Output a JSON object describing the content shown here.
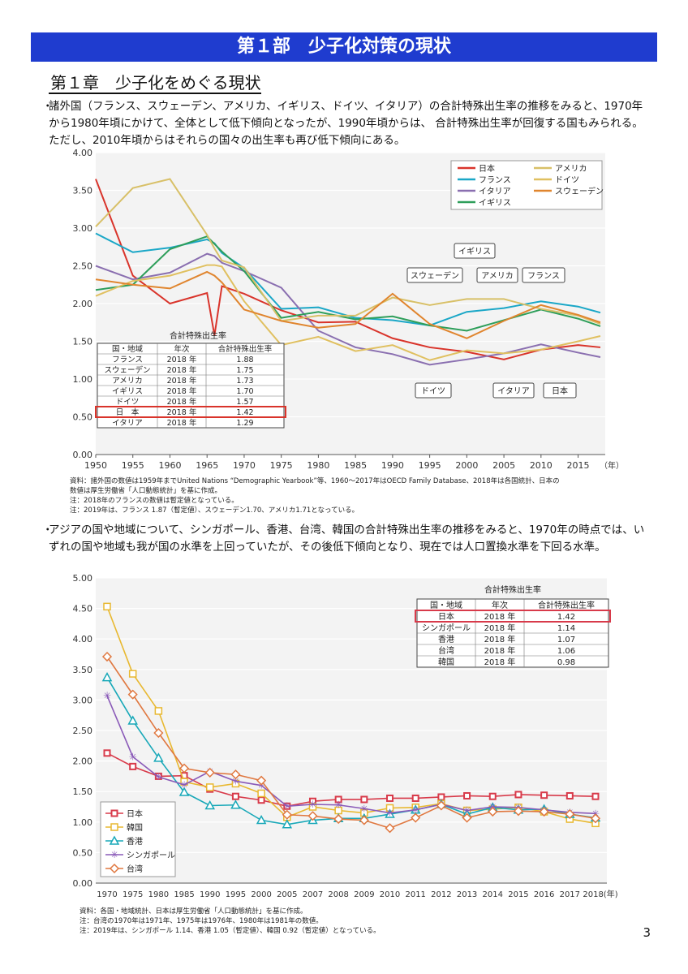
{
  "banner": "第１部　少子化対策の現状",
  "chapter": "第１章　少子化をめぐる現状",
  "bullet": "・",
  "para1": "諸外国（フランス、スウェーデン、アメリカ、イギリス、ドイツ、イタリア）の合計特殊出生率の推移をみると、1970年から1980年頃にかけて、全体として低下傾向となったが、1990年頃からは、 合計特殊出生率が回復する国もみられる。ただし、2010年頃からはそれらの国々の出生率も再び低下傾向にある。",
  "para2": "アジアの国や地域について、シンガポール、香港、台湾、韓国の合計特殊出生率の推移をみると、1970年の時点では、いずれの国や地域も我が国の水準を上回っていたが、その後低下傾向となり、現在では人口置換水準を下回る水準。",
  "notes1": [
    "資料：諸外国の数値は1959年までUnited Nations “Demographic Yearbook”等、1960～2017年はOECD Family Database、2018年は各国統計、日本の",
    "数値は厚生労働省「人口動態統計」を基に作成。",
    "注：2018年のフランスの数値は暫定値となっている。",
    "注：2019年は、フランス 1.87（暫定値）、スウェーデン1.70、アメリカ1.71となっている。"
  ],
  "notes2": [
    "資料：各国・地域統計、日本は厚生労働省「人口動態統計」を基に作成。",
    "注：台湾の1970年は1971年、1975年は1976年、1980年は1981年の数値。",
    "注：2019年は、シンガポール 1.14、香港 1.05（暫定値）、韓国 0.92（暫定値）となっている。"
  ],
  "page_number": "3",
  "chart_data": [
    {
      "type": "line",
      "ylim": [
        0,
        4
      ],
      "xlim": [
        1950,
        2018
      ],
      "x_unit_label": "（年）",
      "xticks": [
        "1950",
        "1955",
        "1960",
        "1965",
        "1970",
        "1975",
        "1980",
        "1985",
        "1990",
        "1995",
        "2000",
        "2005",
        "2010",
        "2015"
      ],
      "yticks": [
        "0.00",
        "0.50",
        "1.00",
        "1.50",
        "2.00",
        "2.50",
        "3.00",
        "3.50",
        "4.00"
      ],
      "grid": true,
      "legend": "top-right",
      "x": [
        1950,
        1955,
        1960,
        1965,
        1966,
        1967,
        1970,
        1975,
        1980,
        1985,
        1990,
        1995,
        2000,
        2005,
        2010,
        2015,
        2018
      ],
      "series": [
        {
          "name": "日本",
          "color": "#d9342b",
          "values": [
            3.65,
            2.37,
            2.0,
            2.14,
            1.58,
            2.23,
            2.13,
            1.91,
            1.75,
            1.76,
            1.54,
            1.42,
            1.36,
            1.26,
            1.39,
            1.45,
            1.42
          ]
        },
        {
          "name": "フランス",
          "color": "#1aa7c7",
          "values": [
            2.93,
            2.68,
            2.74,
            2.85,
            2.8,
            2.67,
            2.47,
            1.93,
            1.95,
            1.81,
            1.78,
            1.71,
            1.89,
            1.94,
            2.03,
            1.96,
            1.88
          ]
        },
        {
          "name": "イタリア",
          "color": "#8a6fb0",
          "values": [
            2.5,
            2.32,
            2.41,
            2.66,
            2.63,
            2.54,
            2.43,
            2.21,
            1.64,
            1.42,
            1.33,
            1.19,
            1.26,
            1.34,
            1.46,
            1.35,
            1.29
          ]
        },
        {
          "name": "イギリス",
          "color": "#2e9e5a",
          "values": [
            2.18,
            2.25,
            2.72,
            2.89,
            2.79,
            2.69,
            2.43,
            1.81,
            1.89,
            1.79,
            1.83,
            1.71,
            1.64,
            1.78,
            1.92,
            1.8,
            1.7
          ]
        },
        {
          "name": "アメリカ",
          "color": "#d8c068",
          "values": [
            3.02,
            3.53,
            3.65,
            2.91,
            2.73,
            2.57,
            2.48,
            1.77,
            1.84,
            1.84,
            2.08,
            1.98,
            2.06,
            2.06,
            1.93,
            1.84,
            1.73
          ]
        },
        {
          "name": "ドイツ",
          "color": "#e0c060",
          "values": [
            2.1,
            2.3,
            2.37,
            2.51,
            2.51,
            2.49,
            2.03,
            1.45,
            1.56,
            1.37,
            1.45,
            1.25,
            1.38,
            1.34,
            1.39,
            1.5,
            1.57
          ]
        },
        {
          "name": "スウェーデン",
          "color": "#e0852e",
          "values": [
            2.32,
            2.25,
            2.2,
            2.42,
            2.37,
            2.28,
            1.92,
            1.77,
            1.68,
            1.73,
            2.13,
            1.73,
            1.54,
            1.77,
            1.98,
            1.85,
            1.75
          ]
        }
      ],
      "table": {
        "title": "合計特殊出生率",
        "headers": [
          "国・地域",
          "年次",
          "合計特殊出生率"
        ],
        "rows": [
          [
            "フランス",
            "2018 年",
            "1.88"
          ],
          [
            "スウェーデン",
            "2018 年",
            "1.75"
          ],
          [
            "アメリカ",
            "2018 年",
            "1.73"
          ],
          [
            "イギリス",
            "2018 年",
            "1.70"
          ],
          [
            "ドイツ",
            "2018 年",
            "1.57"
          ],
          [
            "日　本",
            "2018 年",
            "1.42"
          ],
          [
            "イタリア",
            "2018 年",
            "1.29"
          ]
        ],
        "highlight_row": 5
      },
      "callouts": [
        "イギリス",
        "スウェーデン",
        "アメリカ",
        "フランス",
        "ドイツ",
        "イタリア",
        "日本"
      ]
    },
    {
      "type": "line",
      "ylim": [
        0,
        5
      ],
      "categories": [
        "1970",
        "1975",
        "1980",
        "1985",
        "1990",
        "1995",
        "2000",
        "2005",
        "2007",
        "2008",
        "2009",
        "2010",
        "2011",
        "2012",
        "2013",
        "2014",
        "2015",
        "2016",
        "2017",
        "2018(年)"
      ],
      "yticks": [
        "0.00",
        "0.50",
        "1.00",
        "1.50",
        "2.00",
        "2.50",
        "3.00",
        "3.50",
        "4.00",
        "4.50",
        "5.00"
      ],
      "grid": true,
      "legend": "bottom-left",
      "series": [
        {
          "name": "日本",
          "color": "#d83a4a",
          "marker": "square",
          "values": [
            2.13,
            1.91,
            1.75,
            1.76,
            1.54,
            1.42,
            1.36,
            1.26,
            1.34,
            1.37,
            1.37,
            1.39,
            1.39,
            1.41,
            1.43,
            1.42,
            1.45,
            1.44,
            1.43,
            1.42
          ]
        },
        {
          "name": "韓国",
          "color": "#e8b830",
          "marker": "square-open",
          "values": [
            4.53,
            3.43,
            2.82,
            1.66,
            1.57,
            1.63,
            1.47,
            1.08,
            1.25,
            1.19,
            1.15,
            1.23,
            1.24,
            1.3,
            1.19,
            1.21,
            1.24,
            1.17,
            1.05,
            0.98
          ]
        },
        {
          "name": "香港",
          "color": "#18a8b8",
          "marker": "triangle",
          "values": [
            3.37,
            2.66,
            2.05,
            1.49,
            1.27,
            1.28,
            1.03,
            0.96,
            1.03,
            1.06,
            1.06,
            1.13,
            1.2,
            1.29,
            1.13,
            1.24,
            1.2,
            1.21,
            1.13,
            1.07
          ]
        },
        {
          "name": "シンガポール",
          "color": "#8a5ab8",
          "marker": "star",
          "values": [
            3.07,
            2.07,
            1.74,
            1.61,
            1.83,
            1.67,
            1.6,
            1.26,
            1.29,
            1.28,
            1.22,
            1.15,
            1.2,
            1.29,
            1.19,
            1.25,
            1.24,
            1.2,
            1.16,
            1.14
          ]
        },
        {
          "name": "台湾",
          "color": "#e07840",
          "marker": "diamond",
          "values": [
            3.71,
            3.09,
            2.46,
            1.88,
            1.81,
            1.78,
            1.68,
            1.12,
            1.1,
            1.05,
            1.03,
            0.9,
            1.07,
            1.27,
            1.07,
            1.17,
            1.18,
            1.17,
            1.13,
            1.06
          ]
        }
      ],
      "table": {
        "title": "合計特殊出生率",
        "headers": [
          "国・地域",
          "年次",
          "合計特殊出生率"
        ],
        "rows": [
          [
            "日本",
            "2018 年",
            "1.42"
          ],
          [
            "シンガポール",
            "2018 年",
            "1.14"
          ],
          [
            "香港",
            "2018 年",
            "1.07"
          ],
          [
            "台湾",
            "2018 年",
            "1.06"
          ],
          [
            "韓国",
            "2018 年",
            "0.98"
          ]
        ],
        "highlight_row": 0
      }
    }
  ]
}
